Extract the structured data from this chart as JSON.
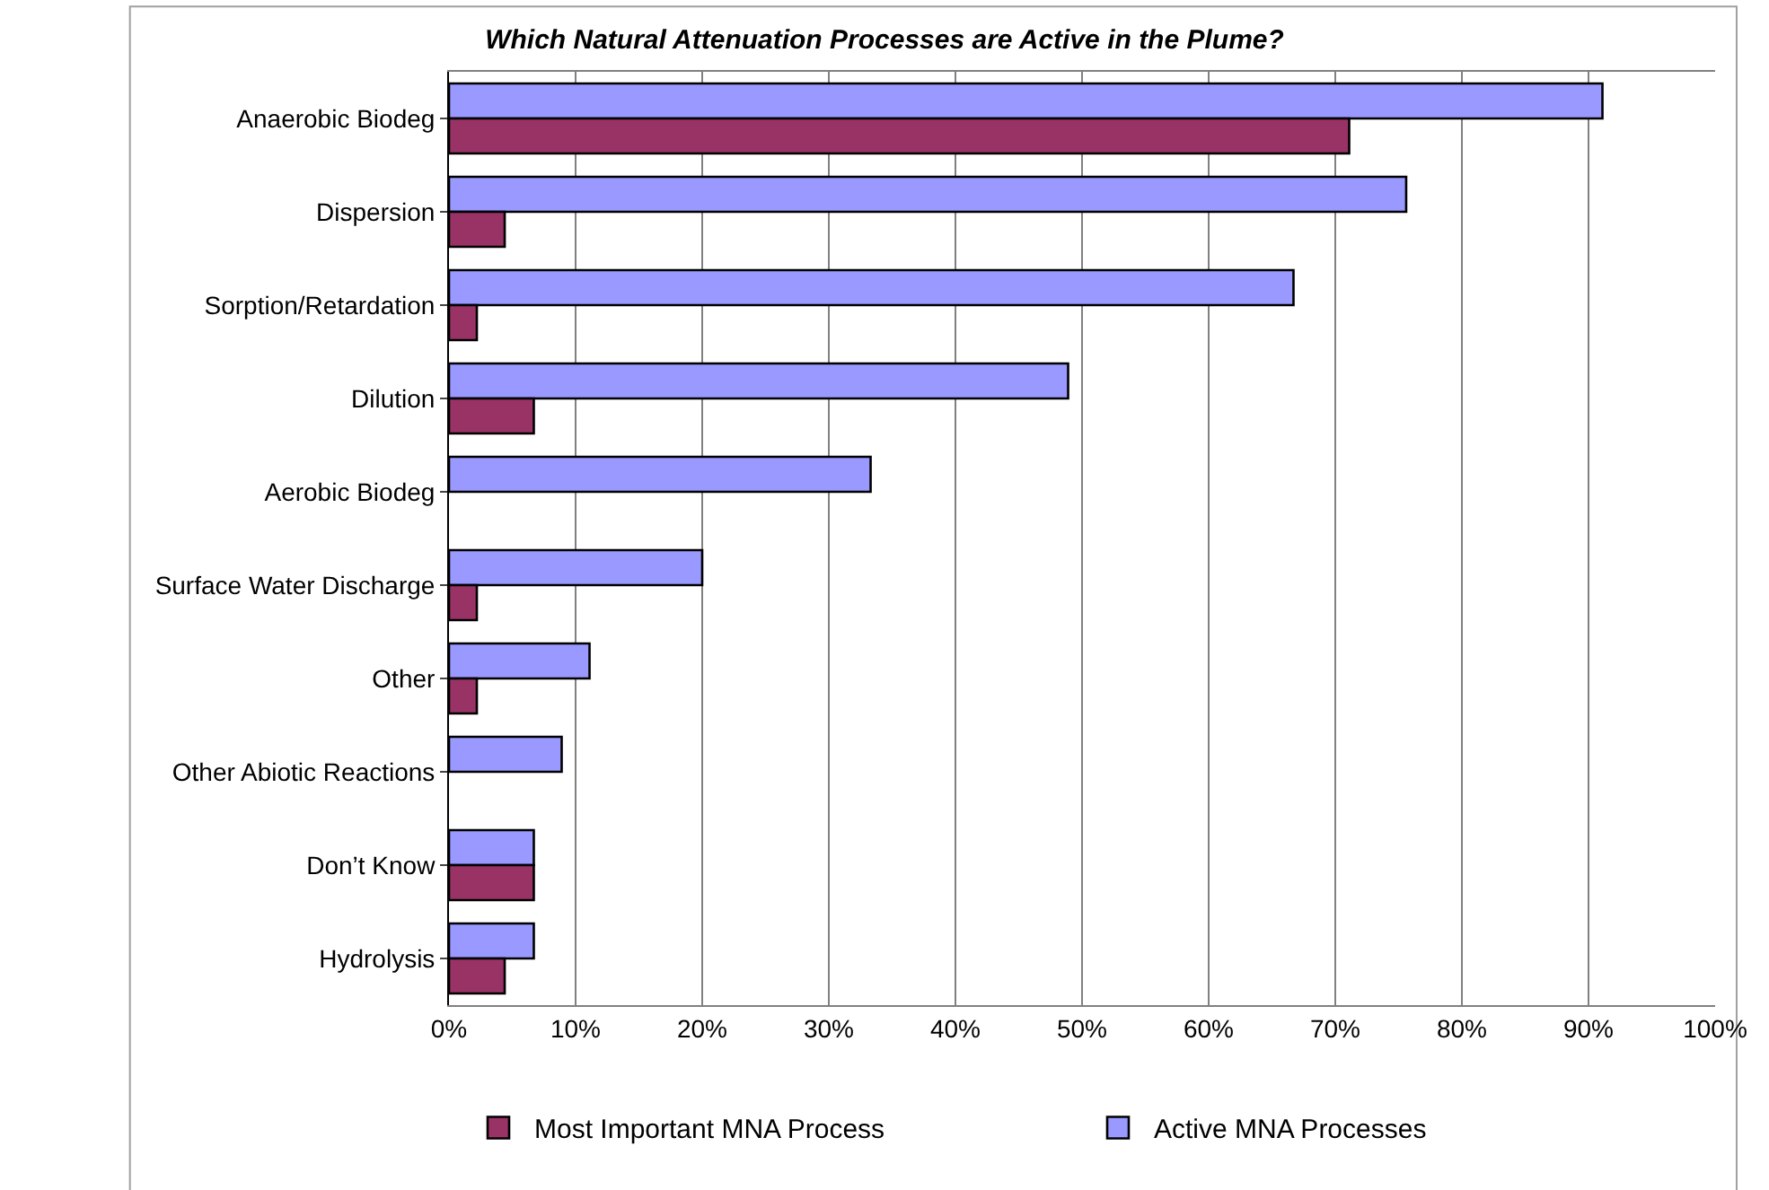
{
  "chart_data": {
    "type": "bar",
    "orientation": "horizontal",
    "title": "Which Natural Attenuation Processes are Active in the Plume?",
    "categories": [
      "Anaerobic Biodeg",
      "Dispersion",
      "Sorption/Retardation",
      "Dilution",
      "Aerobic Biodeg",
      "Surface Water Discharge",
      "Other",
      "Other Abiotic Reactions",
      "Don’t Know",
      "Hydrolysis"
    ],
    "series": [
      {
        "name": "Most Important MNA Process",
        "color": "#993366",
        "values": [
          71.1,
          4.4,
          2.2,
          6.7,
          0,
          2.2,
          2.2,
          0,
          6.7,
          4.4
        ]
      },
      {
        "name": "Active MNA Processes",
        "color": "#9999ff",
        "values": [
          91.1,
          75.6,
          66.7,
          48.9,
          33.3,
          20.0,
          11.1,
          8.9,
          6.7,
          6.7
        ]
      }
    ],
    "xlim": [
      0,
      100
    ],
    "xticks": [
      {
        "value": 0,
        "label": "0%"
      },
      {
        "value": 10,
        "label": "10%"
      },
      {
        "value": 20,
        "label": "20%"
      },
      {
        "value": 30,
        "label": "30%"
      },
      {
        "value": 40,
        "label": "40%"
      },
      {
        "value": 50,
        "label": "50%"
      },
      {
        "value": 60,
        "label": "60%"
      },
      {
        "value": 70,
        "label": "70%"
      },
      {
        "value": 80,
        "label": "80%"
      },
      {
        "value": 90,
        "label": "90%"
      },
      {
        "value": 100,
        "label": "100%"
      }
    ],
    "grid": "x",
    "legend": "bottom"
  }
}
